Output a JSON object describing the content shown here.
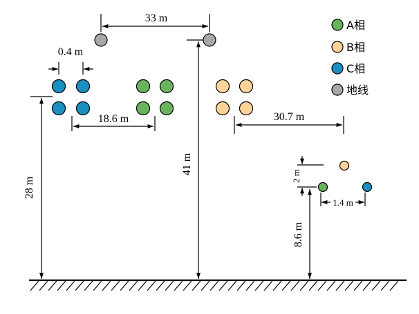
{
  "legend": [
    {
      "label": "A相",
      "color": "#6ab35e"
    },
    {
      "label": "B相",
      "color": "#fdd39a"
    },
    {
      "label": "C相",
      "color": "#1b8fbf"
    },
    {
      "label": "地线",
      "color": "#a8a8a8"
    }
  ],
  "colors": {
    "ground_wire": "#a8a8a8",
    "phase_a": "#6ab35e",
    "phase_b": "#fdd39a",
    "phase_c": "#1b8fbf",
    "line": "#000000"
  },
  "dimensions": {
    "ground_wire_spacing": "33 m",
    "subconductor_spacing": "0.4 m",
    "phase_spacing_left": "18.6 m",
    "phase_spacing_right": "30.7 m",
    "conductor_height": "28 m",
    "ground_wire_height": "41 m",
    "small_line_vertical": "2 m",
    "small_line_horizontal": "1.4 m",
    "small_line_height": "8.6 m"
  }
}
